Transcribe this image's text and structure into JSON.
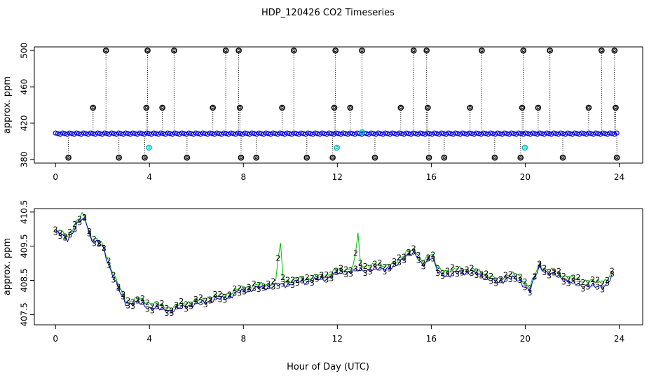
{
  "figure": {
    "title": "HDP_120426  CO2 Timeseries",
    "xlabel": "Hour of Day (UTC)"
  },
  "chart_data": [
    {
      "type": "scatter",
      "panel": "top",
      "ylabel": "approx. ppm",
      "xlim": [
        -0.9,
        25
      ],
      "ylim": [
        376,
        504
      ],
      "xticks": [
        0,
        4,
        8,
        12,
        16,
        20,
        24
      ],
      "yticks": [
        380,
        420,
        460,
        500
      ],
      "x_range": [
        0.0,
        23.9
      ],
      "baseline_ppm": 408.5,
      "series": [
        {
          "marker": "o",
          "color": "#000000",
          "points": [
            [
              0.55,
              382
            ],
            [
              1.6,
              437
            ],
            [
              2.15,
              500
            ],
            [
              2.7,
              382
            ],
            [
              3.8,
              382
            ],
            [
              3.87,
              437
            ],
            [
              3.92,
              500
            ],
            [
              4.55,
              437
            ],
            [
              5.05,
              500
            ],
            [
              5.6,
              382
            ],
            [
              6.7,
              437
            ],
            [
              7.25,
              500
            ],
            [
              7.8,
              500
            ],
            [
              7.85,
              437
            ],
            [
              7.9,
              382
            ],
            [
              8.55,
              382
            ],
            [
              9.65,
              437
            ],
            [
              10.15,
              500
            ],
            [
              10.7,
              382
            ],
            [
              11.8,
              382
            ],
            [
              11.87,
              437
            ],
            [
              11.92,
              500
            ],
            [
              12.55,
              437
            ],
            [
              13.05,
              500
            ],
            [
              13.6,
              382
            ],
            [
              14.7,
              437
            ],
            [
              15.25,
              500
            ],
            [
              15.8,
              500
            ],
            [
              15.85,
              437
            ],
            [
              15.9,
              382
            ],
            [
              16.55,
              382
            ],
            [
              17.65,
              437
            ],
            [
              18.15,
              500
            ],
            [
              18.7,
              382
            ],
            [
              19.8,
              382
            ],
            [
              19.87,
              437
            ],
            [
              19.92,
              500
            ],
            [
              20.55,
              437
            ],
            [
              21.05,
              500
            ],
            [
              21.6,
              382
            ],
            [
              22.7,
              437
            ],
            [
              23.25,
              500
            ],
            [
              23.8,
              500
            ],
            [
              23.85,
              437
            ],
            [
              23.9,
              382
            ]
          ]
        },
        {
          "marker": "o",
          "color": "#00c0c0",
          "points": [
            [
              3.98,
              393
            ],
            [
              11.98,
              393
            ],
            [
              19.98,
              393
            ],
            [
              13.05,
              410
            ]
          ]
        }
      ]
    },
    {
      "type": "line",
      "panel": "bottom",
      "ylabel": "approx. ppm",
      "xlim": [
        -0.9,
        25
      ],
      "ylim": [
        407.2,
        410.6
      ],
      "xticks": [
        0,
        4,
        8,
        12,
        16,
        20,
        24
      ],
      "yticks": [
        407.5,
        408.5,
        409.5,
        410.5
      ],
      "series": [
        {
          "marker": "3",
          "color": "#0000cc",
          "points": [
            [
              0,
              409.9
            ],
            [
              0.5,
              409.7
            ],
            [
              1.0,
              410.2
            ],
            [
              1.3,
              410.3
            ],
            [
              1.5,
              409.7
            ],
            [
              2.0,
              409.5
            ],
            [
              2.3,
              408.9
            ],
            [
              2.7,
              408.2
            ],
            [
              3.0,
              407.8
            ],
            [
              3.5,
              407.85
            ],
            [
              4.0,
              407.7
            ],
            [
              4.5,
              407.65
            ],
            [
              5.0,
              407.6
            ],
            [
              5.5,
              407.75
            ],
            [
              6.0,
              407.8
            ],
            [
              6.5,
              407.9
            ],
            [
              7.0,
              407.95
            ],
            [
              7.5,
              408.05
            ],
            [
              8.0,
              408.2
            ],
            [
              8.5,
              408.25
            ],
            [
              9.0,
              408.3
            ],
            [
              9.5,
              408.35
            ],
            [
              10.0,
              408.4
            ],
            [
              10.5,
              408.45
            ],
            [
              11.0,
              408.5
            ],
            [
              11.5,
              408.55
            ],
            [
              12.0,
              408.7
            ],
            [
              12.5,
              408.75
            ],
            [
              13.0,
              408.8
            ],
            [
              13.5,
              408.8
            ],
            [
              14.0,
              408.85
            ],
            [
              14.5,
              408.9
            ],
            [
              15.0,
              409.3
            ],
            [
              15.3,
              409.25
            ],
            [
              15.6,
              408.95
            ],
            [
              16.0,
              409.2
            ],
            [
              16.3,
              408.7
            ],
            [
              16.8,
              408.65
            ],
            [
              17.3,
              408.75
            ],
            [
              17.8,
              408.7
            ],
            [
              18.3,
              408.6
            ],
            [
              18.8,
              408.4
            ],
            [
              19.3,
              408.6
            ],
            [
              19.8,
              408.45
            ],
            [
              20.2,
              408.2
            ],
            [
              20.6,
              408.9
            ],
            [
              21.0,
              408.7
            ],
            [
              21.5,
              408.6
            ],
            [
              22.0,
              408.4
            ],
            [
              22.5,
              408.35
            ],
            [
              23.0,
              408.3
            ],
            [
              23.4,
              408.35
            ],
            [
              23.7,
              408.6
            ]
          ]
        },
        {
          "marker": "2",
          "color": "#00bb00",
          "points": [
            [
              0,
              409.95
            ],
            [
              0.5,
              409.8
            ],
            [
              1.0,
              410.3
            ],
            [
              1.2,
              410.45
            ],
            [
              1.5,
              409.8
            ],
            [
              2.0,
              409.55
            ],
            [
              2.3,
              409.0
            ],
            [
              2.7,
              408.3
            ],
            [
              3.0,
              407.9
            ],
            [
              3.5,
              407.95
            ],
            [
              4.0,
              407.85
            ],
            [
              4.5,
              407.75
            ],
            [
              5.0,
              407.7
            ],
            [
              5.5,
              407.85
            ],
            [
              6.0,
              407.9
            ],
            [
              6.5,
              408.0
            ],
            [
              7.0,
              408.05
            ],
            [
              7.5,
              408.15
            ],
            [
              8.0,
              408.3
            ],
            [
              8.5,
              408.35
            ],
            [
              9.0,
              408.4
            ],
            [
              9.4,
              408.45
            ],
            [
              9.55,
              409.8
            ],
            [
              9.7,
              408.5
            ],
            [
              10.0,
              408.5
            ],
            [
              10.5,
              408.55
            ],
            [
              11.0,
              408.6
            ],
            [
              11.5,
              408.65
            ],
            [
              12.0,
              408.8
            ],
            [
              12.5,
              408.85
            ],
            [
              12.75,
              408.9
            ],
            [
              12.85,
              410.3
            ],
            [
              12.95,
              408.95
            ],
            [
              13.5,
              408.95
            ],
            [
              14.0,
              408.95
            ],
            [
              14.5,
              409.0
            ],
            [
              15.0,
              409.4
            ],
            [
              15.3,
              409.35
            ],
            [
              15.6,
              409.05
            ],
            [
              16.0,
              409.3
            ],
            [
              16.3,
              408.8
            ],
            [
              16.8,
              408.8
            ],
            [
              17.3,
              408.85
            ],
            [
              17.8,
              408.8
            ],
            [
              18.3,
              408.7
            ],
            [
              18.8,
              408.5
            ],
            [
              19.3,
              408.7
            ],
            [
              19.8,
              408.6
            ],
            [
              20.2,
              408.3
            ],
            [
              20.6,
              408.95
            ],
            [
              21.0,
              408.8
            ],
            [
              21.5,
              408.7
            ],
            [
              22.0,
              408.55
            ],
            [
              22.5,
              408.5
            ],
            [
              23.0,
              408.45
            ],
            [
              23.4,
              408.5
            ],
            [
              23.7,
              408.7
            ]
          ]
        }
      ]
    }
  ]
}
